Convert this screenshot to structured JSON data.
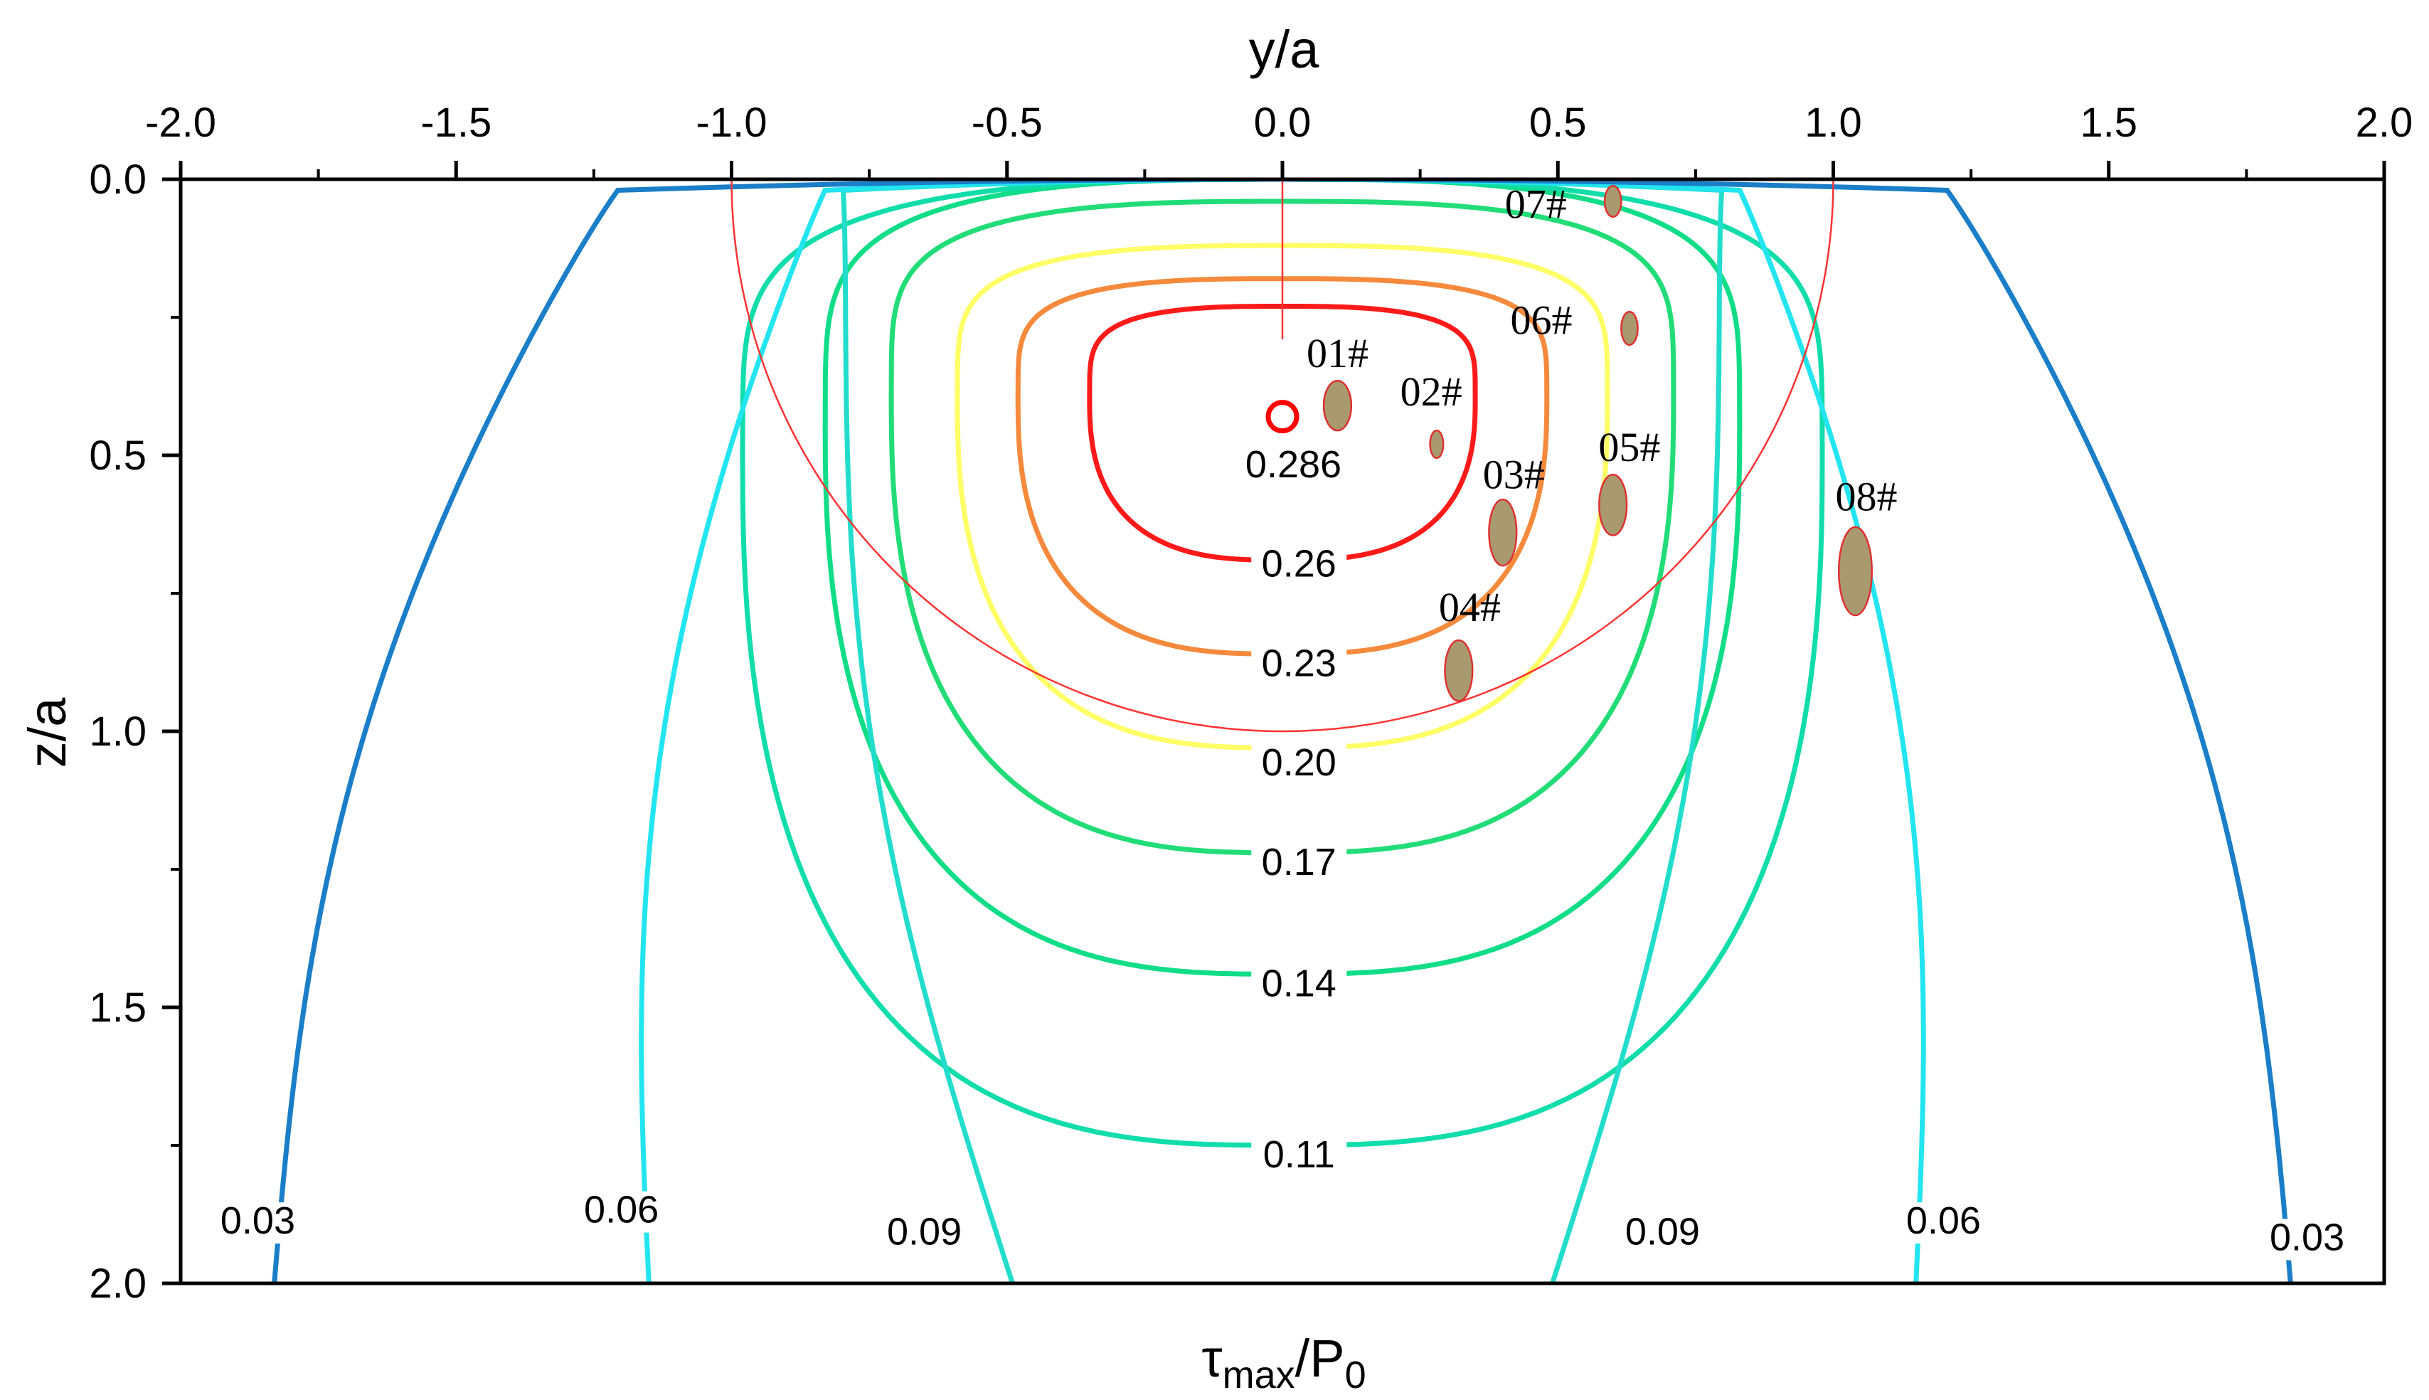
{
  "chart_data": {
    "type": "contour",
    "title": "",
    "xlabel": "y/a",
    "ylabel": "z/a",
    "bottom_label": {
      "base": "τ",
      "sub1": "max",
      "mid": "/P",
      "sub2": "0"
    },
    "xlim": [
      -2.0,
      2.0
    ],
    "ylim": [
      0.0,
      2.0
    ],
    "y_inverted": true,
    "x_ticks": [
      "-2.0",
      "-1.5",
      "-1.0",
      "-0.5",
      "0.0",
      "0.5",
      "1.0",
      "1.5",
      "2.0"
    ],
    "y_ticks": [
      "0.0",
      "0.5",
      "1.0",
      "1.5",
      "2.0"
    ],
    "contours": [
      {
        "level": "0.286",
        "color": "#ff0000",
        "shape": "point",
        "center": [
          0.0,
          0.43
        ]
      },
      {
        "level": "0.26",
        "color": "#ff1a1a",
        "ytop": 0.23,
        "ybot": 0.69,
        "xhalf": 0.35,
        "zmax": 0.4
      },
      {
        "level": "0.23",
        "color": "#f58a3c",
        "ytop": 0.18,
        "ybot": 0.86,
        "xhalf": 0.48,
        "zmax": 0.4
      },
      {
        "level": "0.20",
        "color": "#ffff66",
        "ytop": 0.12,
        "ybot": 1.03,
        "xhalf": 0.59,
        "zmax": 0.4
      },
      {
        "level": "0.17",
        "color": "#22dd77",
        "ytop": 0.04,
        "ybot": 1.22,
        "xhalf": 0.71,
        "zmax": 0.4
      },
      {
        "level": "0.14",
        "color": "#11dd88",
        "ytop": 0.0,
        "ybot": 1.44,
        "xhalf": 0.83,
        "zmax": 0.45
      },
      {
        "level": "0.11",
        "color": "#11ddaa",
        "ytop": 0.0,
        "ybot": 1.75,
        "xhalf": 0.98,
        "zmax": 0.5
      },
      {
        "level": "0.09",
        "color": "#22ddcc",
        "shape": "open",
        "xtop": 0.8,
        "xbot": 0.49
      },
      {
        "level": "0.06",
        "color": "#22e5f0",
        "shape": "open",
        "xtop": 0.82,
        "xbot": 1.15
      },
      {
        "level": "0.03",
        "color": "#1a7ec8",
        "shape": "open",
        "xtop": 1.19,
        "xbot": 1.83
      }
    ],
    "contour_labels": [
      {
        "text": "0.286",
        "x": 0.02,
        "z": 0.54
      },
      {
        "text": "0.26",
        "x": 0.03,
        "z": 0.72
      },
      {
        "text": "0.23",
        "x": 0.03,
        "z": 0.9
      },
      {
        "text": "0.20",
        "x": 0.03,
        "z": 1.08
      },
      {
        "text": "0.17",
        "x": 0.03,
        "z": 1.26
      },
      {
        "text": "0.14",
        "x": 0.03,
        "z": 1.48
      },
      {
        "text": "0.11",
        "x": 0.03,
        "z": 1.79
      },
      {
        "text": "0.09",
        "x": -0.65,
        "z": 1.93
      },
      {
        "text": "0.09",
        "x": 0.69,
        "z": 1.93
      },
      {
        "text": "0.06",
        "x": -1.2,
        "z": 1.89
      },
      {
        "text": "0.06",
        "x": 1.2,
        "z": 1.91
      },
      {
        "text": "0.03",
        "x": -1.86,
        "z": 1.91
      },
      {
        "text": "0.03",
        "x": 1.86,
        "z": 1.94
      }
    ],
    "reference_circle": {
      "center": [
        0.0,
        0.0
      ],
      "radius": 1.0,
      "color": "#ff3333"
    },
    "reference_line": {
      "x": 0.0,
      "from": 0.0,
      "to": 0.29
    },
    "defects": [
      {
        "label": "01#",
        "x": 0.1,
        "z": 0.41,
        "rx": 0.025,
        "rz": 0.045,
        "label_x": 0.1,
        "label_z": 0.34
      },
      {
        "label": "02#",
        "x": 0.28,
        "z": 0.48,
        "rx": 0.012,
        "rz": 0.025,
        "label_x": 0.27,
        "label_z": 0.41
      },
      {
        "label": "03#",
        "x": 0.4,
        "z": 0.64,
        "rx": 0.025,
        "rz": 0.06,
        "label_x": 0.42,
        "label_z": 0.56
      },
      {
        "label": "04#",
        "x": 0.32,
        "z": 0.89,
        "rx": 0.025,
        "rz": 0.055,
        "label_x": 0.34,
        "label_z": 0.8
      },
      {
        "label": "05#",
        "x": 0.6,
        "z": 0.59,
        "rx": 0.025,
        "rz": 0.055,
        "label_x": 0.63,
        "label_z": 0.51
      },
      {
        "label": "06#",
        "x": 0.63,
        "z": 0.27,
        "rx": 0.015,
        "rz": 0.03,
        "label_x": 0.47,
        "label_z": 0.28
      },
      {
        "label": "07#",
        "x": 0.6,
        "z": 0.04,
        "rx": 0.015,
        "rz": 0.028,
        "label_x": 0.46,
        "label_z": 0.07
      },
      {
        "label": "08#",
        "x": 1.04,
        "z": 0.71,
        "rx": 0.03,
        "rz": 0.08,
        "label_x": 1.06,
        "label_z": 0.6
      }
    ],
    "grid": false
  }
}
